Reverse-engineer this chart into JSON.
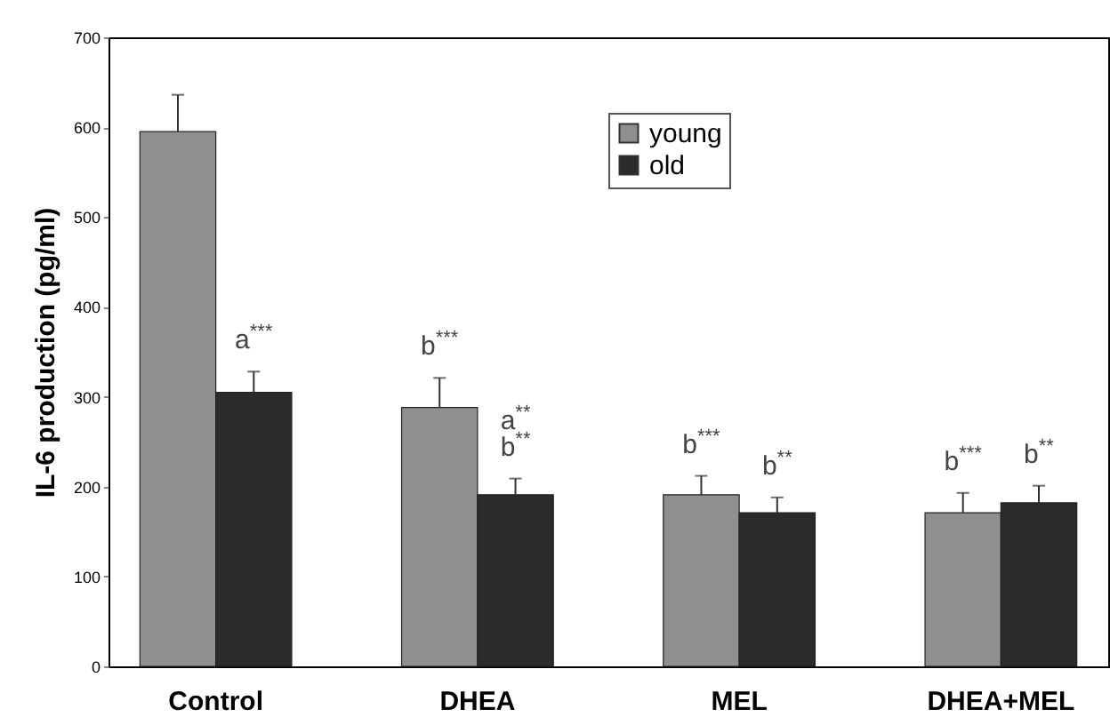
{
  "chart_data": {
    "type": "bar",
    "ylabel": "IL-6 production (pg/ml)",
    "categories": [
      "Control",
      "DHEA",
      "MEL",
      "DHEA+MEL"
    ],
    "series": [
      {
        "name": "young",
        "color": "#8f8f8f",
        "values": [
          595,
          288,
          191,
          171
        ],
        "errors": [
          [
            595,
            636
          ],
          [
            288,
            321
          ],
          [
            191,
            212
          ],
          [
            171,
            193
          ]
        ]
      },
      {
        "name": "old",
        "color": "#2b2b2b",
        "values": [
          305,
          191,
          171,
          182
        ],
        "errors": [
          [
            305,
            328
          ],
          [
            191,
            209
          ],
          [
            171,
            188
          ],
          [
            182,
            201
          ]
        ]
      }
    ],
    "ylim": [
      0,
      700
    ],
    "yticks": [
      0,
      100,
      200,
      300,
      400,
      500,
      600,
      700
    ],
    "legend": "top",
    "grid": false,
    "annotations": [
      {
        "text": "a$^{***}$",
        "x": "Control",
        "y": 305
      },
      {
        "text": "b$^{***}$",
        "x": "DHEA",
        "y": 288
      },
      {
        "text": "a$^{**}$",
        "x": "DHEA",
        "y": 191
      },
      {
        "text": "b$^{**}$",
        "x": "DHEA",
        "y": 191
      },
      {
        "text": "b$^{***}$",
        "x": "MEL",
        "y": 191
      },
      {
        "text": "b$^{**}$",
        "x": "MEL",
        "y": 171
      },
      {
        "text": "b$^{***}$",
        "x": "DHEA+MEL",
        "y": 171
      },
      {
        "text": "b$^{**}$",
        "x": "DHEA+MEL",
        "y": 182
      }
    ]
  }
}
